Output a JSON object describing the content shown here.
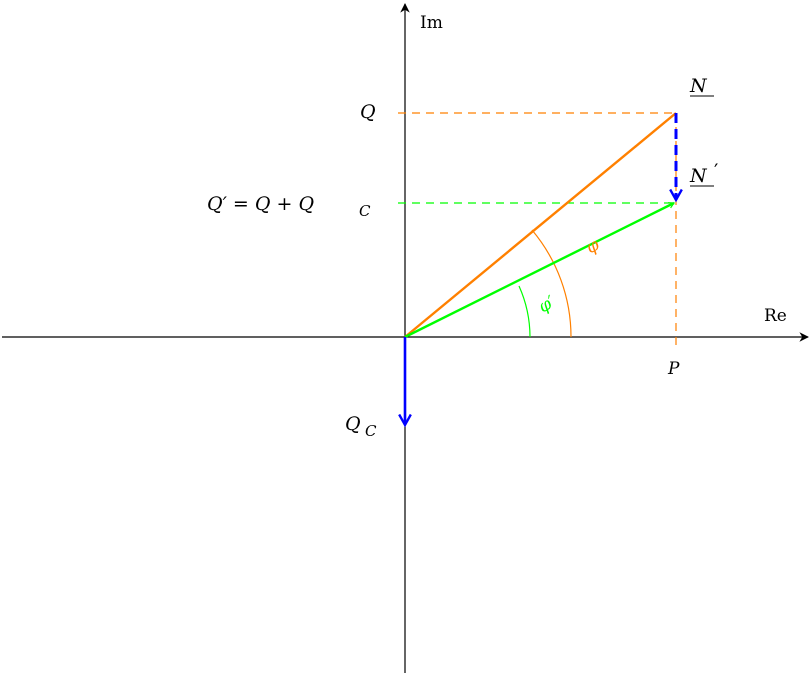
{
  "axes": {
    "real_label": "Re",
    "imag_label": "Im"
  },
  "labels": {
    "N": "N",
    "N_prime": "N",
    "prime": "′",
    "Q": "Q",
    "Q_prime_eq": "Q′ = Q + Q",
    "Q_prime_sub": "C",
    "QC": "Q",
    "QC_sub": "C",
    "P": "P",
    "phi": "φ",
    "phi_prime": "φ′"
  },
  "colors": {
    "axis": "#000000",
    "apparent_power": "#ff8000",
    "compensated_power": "#00ff00",
    "capacitor": "#0000ff"
  }
}
